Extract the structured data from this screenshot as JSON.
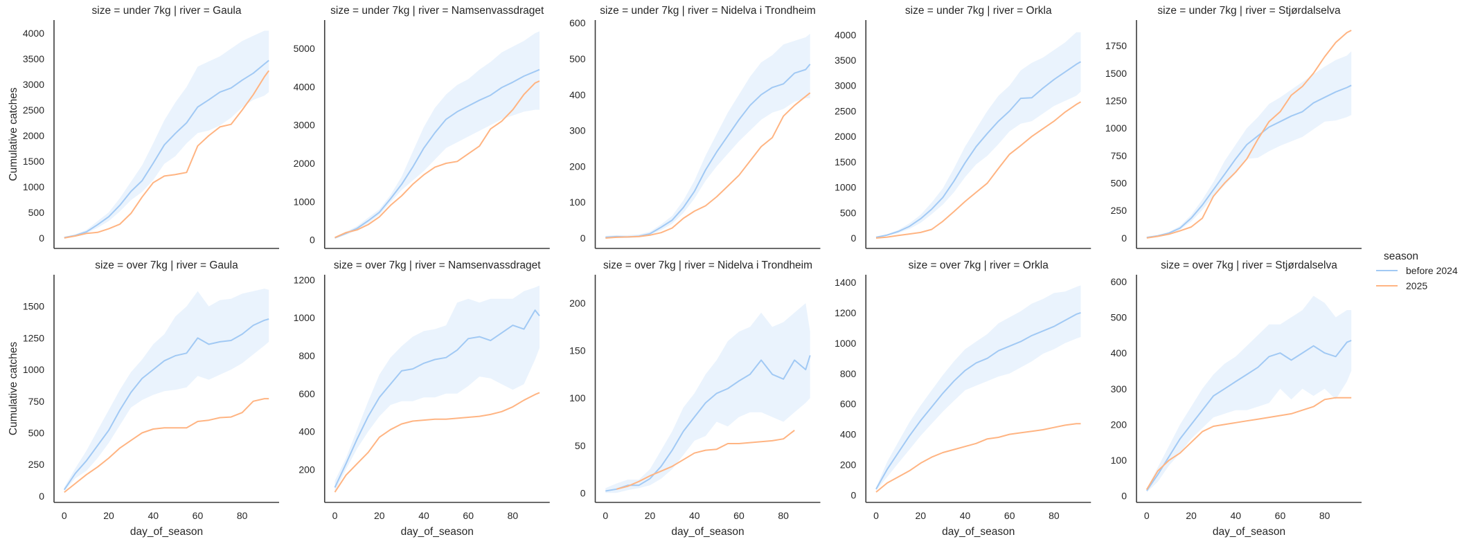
{
  "chart_data": {
    "type": "line",
    "xlabel": "day_of_season",
    "ylabel": "Cumulative catches",
    "xlim": [
      -4.6,
      96.6
    ],
    "x_ticks": [
      0,
      20,
      40,
      60,
      80
    ],
    "x": [
      0,
      5,
      10,
      15,
      20,
      25,
      30,
      35,
      40,
      45,
      50,
      55,
      60,
      65,
      70,
      75,
      80,
      85,
      90,
      92
    ],
    "grid": false,
    "legend": {
      "title": "season",
      "placement": "right",
      "entries": [
        {
          "name": "before 2024",
          "color": "#a1c9f4"
        },
        {
          "name": "2025",
          "color": "#ffb482"
        }
      ]
    },
    "band_color": "#a1c9f4",
    "panels": [
      {
        "title": "size = under 7kg | river = Gaula",
        "ylim": [
          -204,
          4258
        ],
        "y_ticks": [
          0,
          500,
          1000,
          1500,
          2000,
          2500,
          3000,
          3500,
          4000
        ],
        "before": [
          10,
          50,
          120,
          260,
          415,
          640,
          910,
          1120,
          1460,
          1820,
          2045,
          2250,
          2560,
          2700,
          2850,
          2930,
          3085,
          3220,
          3400,
          3470
        ],
        "lower": [
          0,
          30,
          90,
          200,
          330,
          520,
          740,
          900,
          1130,
          1450,
          1600,
          1850,
          2050,
          2100,
          2200,
          2350,
          2550,
          2700,
          2780,
          2850
        ],
        "upper": [
          15,
          70,
          160,
          330,
          500,
          780,
          1100,
          1420,
          1850,
          2300,
          2650,
          2950,
          3350,
          3450,
          3550,
          3700,
          3850,
          3950,
          4050,
          4050
        ],
        "s2025": [
          0,
          40,
          90,
          110,
          180,
          270,
          480,
          800,
          1080,
          1210,
          1240,
          1280,
          1800,
          2000,
          2170,
          2220,
          2500,
          2800,
          3150,
          3270
        ]
      },
      {
        "title": "size = under 7kg | river = Namsenvassdraget",
        "ylim": [
          -224,
          5744
        ],
        "y_ticks": [
          0,
          1000,
          2000,
          3000,
          4000,
          5000
        ],
        "before": [
          50,
          170,
          300,
          500,
          720,
          1070,
          1450,
          1900,
          2400,
          2800,
          3150,
          3350,
          3500,
          3650,
          3780,
          3980,
          4120,
          4280,
          4400,
          4450
        ],
        "lower": [
          30,
          130,
          250,
          430,
          650,
          980,
          1300,
          1550,
          1800,
          2100,
          2400,
          2550,
          2700,
          2850,
          3000,
          3150,
          3250,
          3350,
          3400,
          3400
        ],
        "upper": [
          70,
          210,
          360,
          580,
          800,
          1170,
          1650,
          2300,
          2950,
          3450,
          3800,
          4050,
          4200,
          4450,
          4650,
          4900,
          5050,
          5200,
          5400,
          5450
        ],
        "s2025": [
          60,
          190,
          260,
          400,
          600,
          900,
          1150,
          1450,
          1700,
          1900,
          2000,
          2050,
          2250,
          2450,
          2900,
          3100,
          3400,
          3800,
          4100,
          4150
        ]
      },
      {
        "title": "size = under 7kg | river = Nidelva i Trondheim",
        "ylim": [
          -29,
          608
        ],
        "y_ticks": [
          0,
          100,
          200,
          300,
          400,
          500,
          600
        ],
        "before": [
          2,
          4,
          3,
          5,
          12,
          30,
          50,
          85,
          130,
          190,
          240,
          285,
          330,
          370,
          400,
          420,
          430,
          460,
          470,
          485
        ],
        "lower": [
          0,
          0,
          0,
          2,
          8,
          22,
          40,
          70,
          110,
          160,
          200,
          235,
          270,
          300,
          330,
          350,
          360,
          380,
          390,
          390
        ],
        "upper": [
          6,
          8,
          8,
          10,
          18,
          38,
          62,
          105,
          160,
          230,
          290,
          350,
          400,
          450,
          490,
          510,
          540,
          550,
          560,
          570
        ],
        "s2025": [
          0,
          2,
          3,
          4,
          8,
          15,
          28,
          55,
          75,
          90,
          115,
          145,
          175,
          215,
          255,
          280,
          340,
          370,
          395,
          405
        ]
      },
      {
        "title": "size = under 7kg | river = Orkla",
        "ylim": [
          -204,
          4290
        ],
        "y_ticks": [
          0,
          500,
          1000,
          1500,
          2000,
          2500,
          3000,
          3500,
          4000
        ],
        "before": [
          15,
          60,
          130,
          230,
          380,
          570,
          800,
          1120,
          1480,
          1800,
          2060,
          2300,
          2500,
          2750,
          2760,
          2950,
          3120,
          3270,
          3420,
          3470
        ],
        "lower": [
          10,
          45,
          100,
          180,
          300,
          470,
          660,
          900,
          1200,
          1450,
          1620,
          1850,
          2100,
          2250,
          2300,
          2450,
          2600,
          2700,
          2800,
          2880
        ],
        "upper": [
          20,
          75,
          160,
          290,
          460,
          700,
          980,
          1370,
          1800,
          2150,
          2500,
          2800,
          3000,
          3300,
          3450,
          3550,
          3700,
          3850,
          4050,
          4050
        ],
        "s2025": [
          0,
          20,
          50,
          80,
          110,
          170,
          330,
          520,
          720,
          900,
          1080,
          1370,
          1650,
          1820,
          2000,
          2150,
          2300,
          2480,
          2630,
          2680
        ]
      },
      {
        "title": "size = under 7kg | river = Stjørdalselva",
        "ylim": [
          -95,
          1984
        ],
        "y_ticks": [
          0,
          250,
          500,
          750,
          1000,
          1250,
          1500,
          1750
        ],
        "before": [
          5,
          20,
          45,
          90,
          180,
          300,
          440,
          580,
          720,
          850,
          930,
          1010,
          1060,
          1110,
          1150,
          1230,
          1280,
          1330,
          1370,
          1390
        ],
        "lower": [
          3,
          15,
          35,
          75,
          150,
          255,
          380,
          480,
          590,
          720,
          730,
          790,
          840,
          880,
          920,
          990,
          1060,
          1070,
          1100,
          1120
        ],
        "upper": [
          8,
          25,
          55,
          110,
          210,
          350,
          510,
          700,
          850,
          1000,
          1100,
          1220,
          1280,
          1350,
          1420,
          1490,
          1560,
          1620,
          1660,
          1700
        ],
        "s2025": [
          0,
          15,
          35,
          65,
          100,
          180,
          380,
          500,
          600,
          720,
          900,
          1060,
          1150,
          1300,
          1380,
          1500,
          1650,
          1780,
          1870,
          1890
        ]
      },
      {
        "title": "size = over 7kg | river = Gaula",
        "ylim": [
          -50,
          1750
        ],
        "y_ticks": [
          0,
          250,
          500,
          750,
          1000,
          1250,
          1500
        ],
        "before": [
          50,
          180,
          280,
          400,
          520,
          680,
          820,
          930,
          1000,
          1070,
          1110,
          1130,
          1250,
          1200,
          1220,
          1230,
          1280,
          1350,
          1390,
          1400
        ],
        "lower": [
          40,
          140,
          200,
          300,
          420,
          560,
          700,
          760,
          800,
          830,
          840,
          860,
          950,
          920,
          960,
          1000,
          1050,
          1120,
          1190,
          1220
        ],
        "upper": [
          70,
          220,
          360,
          520,
          680,
          840,
          980,
          1080,
          1200,
          1280,
          1420,
          1500,
          1620,
          1500,
          1550,
          1560,
          1600,
          1620,
          1640,
          1630
        ],
        "s2025": [
          30,
          100,
          170,
          230,
          300,
          380,
          440,
          500,
          530,
          540,
          540,
          540,
          590,
          600,
          620,
          625,
          660,
          750,
          770,
          770
        ]
      },
      {
        "title": "size = over 7kg | river = Namsenvassdraget",
        "ylim": [
          26,
          1227
        ],
        "y_ticks": [
          200,
          400,
          600,
          800,
          1000,
          1200
        ],
        "before": [
          105,
          230,
          360,
          480,
          580,
          650,
          720,
          730,
          760,
          780,
          790,
          830,
          890,
          900,
          880,
          920,
          960,
          940,
          1040,
          1010
        ],
        "lower": [
          80,
          200,
          310,
          400,
          480,
          540,
          560,
          560,
          580,
          580,
          600,
          600,
          640,
          690,
          680,
          650,
          620,
          650,
          780,
          840
        ],
        "upper": [
          140,
          260,
          410,
          560,
          700,
          790,
          850,
          900,
          930,
          940,
          960,
          1080,
          1100,
          1080,
          1100,
          1100,
          1100,
          1140,
          1160,
          1170
        ],
        "s2025": [
          80,
          170,
          230,
          290,
          370,
          410,
          440,
          455,
          460,
          465,
          465,
          470,
          475,
          480,
          490,
          505,
          530,
          565,
          595,
          605
        ]
      },
      {
        "title": "size = over 7kg | river = Nidelva i Trondheim",
        "ylim": [
          -10,
          230
        ],
        "y_ticks": [
          0,
          50,
          100,
          150,
          200
        ],
        "before": [
          2,
          4,
          8,
          8,
          15,
          28,
          45,
          65,
          80,
          95,
          105,
          110,
          118,
          125,
          140,
          125,
          120,
          140,
          130,
          145
        ],
        "lower": [
          0,
          0,
          3,
          5,
          8,
          15,
          25,
          40,
          55,
          60,
          75,
          70,
          80,
          85,
          85,
          80,
          75,
          85,
          95,
          100
        ],
        "upper": [
          5,
          10,
          14,
          14,
          25,
          45,
          65,
          90,
          105,
          125,
          140,
          160,
          170,
          175,
          190,
          175,
          180,
          190,
          200,
          170
        ],
        "s2025": [
          null,
          4,
          7,
          12,
          18,
          23,
          28,
          35,
          42,
          45,
          46,
          52,
          52,
          53,
          54,
          55,
          57,
          66,
          null,
          null
        ]
      },
      {
        "title": "size = over 7kg | river = Orkla",
        "ylim": [
          -48,
          1450
        ],
        "y_ticks": [
          0,
          200,
          400,
          600,
          800,
          1000,
          1200,
          1400
        ],
        "before": [
          40,
          170,
          280,
          390,
          490,
          580,
          670,
          750,
          820,
          870,
          900,
          950,
          980,
          1010,
          1050,
          1080,
          1110,
          1150,
          1190,
          1200
        ],
        "lower": [
          30,
          120,
          210,
          300,
          390,
          470,
          550,
          620,
          690,
          720,
          750,
          780,
          800,
          840,
          880,
          930,
          960,
          1000,
          1030,
          1040
        ],
        "upper": [
          50,
          220,
          350,
          480,
          590,
          690,
          790,
          880,
          960,
          1010,
          1060,
          1130,
          1170,
          1210,
          1260,
          1290,
          1330,
          1340,
          1370,
          1380
        ],
        "s2025": [
          20,
          80,
          120,
          160,
          210,
          250,
          280,
          300,
          320,
          340,
          370,
          380,
          400,
          410,
          420,
          430,
          445,
          460,
          470,
          470
        ]
      },
      {
        "title": "size = over 7kg | river = Stjørdalselva",
        "ylim": [
          -18,
          619
        ],
        "y_ticks": [
          0,
          100,
          200,
          300,
          400,
          500,
          600
        ],
        "before": [
          15,
          60,
          110,
          160,
          200,
          240,
          280,
          300,
          320,
          340,
          360,
          390,
          400,
          380,
          400,
          420,
          400,
          390,
          430,
          435
        ],
        "lower": [
          10,
          40,
          85,
          120,
          160,
          190,
          220,
          230,
          240,
          240,
          250,
          260,
          300,
          270,
          300,
          280,
          300,
          270,
          320,
          350
        ],
        "upper": [
          20,
          80,
          140,
          200,
          250,
          300,
          340,
          370,
          390,
          420,
          450,
          480,
          480,
          500,
          520,
          560,
          540,
          500,
          520,
          520
        ],
        "s2025": [
          18,
          70,
          100,
          120,
          150,
          180,
          195,
          200,
          205,
          210,
          215,
          220,
          225,
          230,
          240,
          250,
          270,
          275,
          275,
          275
        ]
      }
    ]
  }
}
